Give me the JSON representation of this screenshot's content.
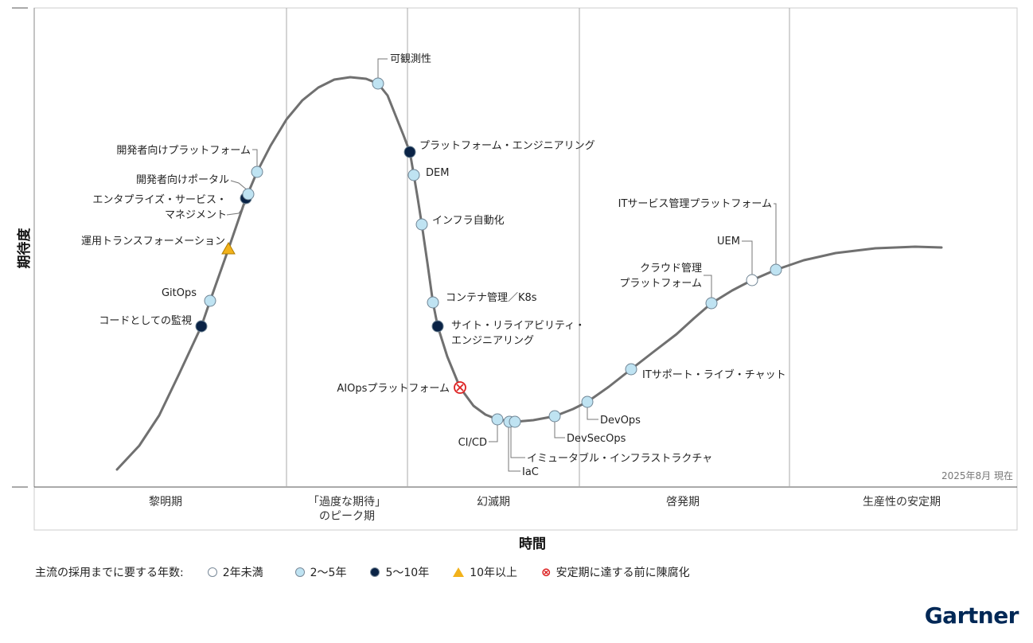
{
  "chart_data": {
    "type": "scatter",
    "subtype": "hype-cycle",
    "ylabel": "期待度",
    "xlabel": "時間",
    "as_of": "2025年8月 現在",
    "phases": [
      "黎明期",
      "「過度な期待」\nのピーク期",
      "幻滅期",
      "啓発期",
      "生産性の安定期"
    ],
    "phase_lines": [
      [
        "黎明期"
      ],
      [
        "「過度な期待」",
        "のピーク期"
      ],
      [
        "幻滅期"
      ],
      [
        "啓発期"
      ],
      [
        "生産性の安定期"
      ]
    ],
    "points": [
      {
        "name": "コードとしての監視",
        "lines": [
          "コードとしての監視"
        ],
        "phase": "黎明期",
        "years": "5〜10年"
      },
      {
        "name": "GitOps",
        "lines": [
          "GitOps"
        ],
        "phase": "黎明期",
        "years": "2〜5年"
      },
      {
        "name": "運用トランスフォーメーション",
        "lines": [
          "運用トランスフォーメーション"
        ],
        "phase": "黎明期",
        "years": "10年以上"
      },
      {
        "name": "エンタプライズ・サービス・マネジメント",
        "lines": [
          "エンタプライズ・サービス・",
          "マネジメント"
        ],
        "phase": "黎明期",
        "years": "5〜10年"
      },
      {
        "name": "開発者向けポータル",
        "lines": [
          "開発者向けポータル"
        ],
        "phase": "黎明期",
        "years": "2〜5年"
      },
      {
        "name": "開発者向けプラットフォーム",
        "lines": [
          "開発者向けプラットフォーム"
        ],
        "phase": "黎明期",
        "years": "2〜5年"
      },
      {
        "name": "可観測性",
        "lines": [
          "可観測性"
        ],
        "phase": "「過度な期待」のピーク期",
        "years": "2〜5年"
      },
      {
        "name": "プラットフォーム・エンジニアリング",
        "lines": [
          "プラットフォーム・エンジニアリング"
        ],
        "phase": "幻滅期",
        "years": "5〜10年"
      },
      {
        "name": "DEM",
        "lines": [
          "DEM"
        ],
        "phase": "幻滅期",
        "years": "2〜5年"
      },
      {
        "name": "インフラ自動化",
        "lines": [
          "インフラ自動化"
        ],
        "phase": "幻滅期",
        "years": "2〜5年"
      },
      {
        "name": "コンテナ管理／K8s",
        "lines": [
          "コンテナ管理／K8s"
        ],
        "phase": "幻滅期",
        "years": "2〜5年"
      },
      {
        "name": "サイト・リライアビリティ・エンジニアリング",
        "lines": [
          "サイト・リライアビリティ・",
          "エンジニアリング"
        ],
        "phase": "幻滅期",
        "years": "5〜10年"
      },
      {
        "name": "AIOpsプラットフォーム",
        "lines": [
          "AIOpsプラットフォーム"
        ],
        "phase": "幻滅期",
        "years": "安定期に達する前に陳腐化"
      },
      {
        "name": "CI/CD",
        "lines": [
          "CI/CD"
        ],
        "phase": "幻滅期",
        "years": "2〜5年"
      },
      {
        "name": "イミュータブル・インフラストラクチャ",
        "lines": [
          "イミュータブル・インフラストラクチャ"
        ],
        "phase": "幻滅期",
        "years": "2〜5年"
      },
      {
        "name": "IaC",
        "lines": [
          "IaC"
        ],
        "phase": "幻滅期",
        "years": "2〜5年"
      },
      {
        "name": "DevSecOps",
        "lines": [
          "DevSecOps"
        ],
        "phase": "幻滅期",
        "years": "2〜5年"
      },
      {
        "name": "DevOps",
        "lines": [
          "DevOps"
        ],
        "phase": "啓発期",
        "years": "2〜5年"
      },
      {
        "name": "ITサポート・ライブ・チャット",
        "lines": [
          "ITサポート・ライブ・チャット"
        ],
        "phase": "啓発期",
        "years": "2〜5年"
      },
      {
        "name": "クラウド管理プラットフォーム",
        "lines": [
          "クラウド管理",
          "プラットフォーム"
        ],
        "phase": "啓発期",
        "years": "2〜5年"
      },
      {
        "name": "UEM",
        "lines": [
          "UEM"
        ],
        "phase": "啓発期",
        "years": "2年未満"
      },
      {
        "name": "ITサービス管理プラットフォーム",
        "lines": [
          "ITサービス管理プラットフォーム"
        ],
        "phase": "啓発期",
        "years": "2〜5年"
      }
    ],
    "legend": {
      "title": "主流の採用までに要する年数:",
      "items": [
        {
          "label": "2年未満",
          "marker": "circle",
          "color": "#ffffff"
        },
        {
          "label": "2〜5年",
          "marker": "circle",
          "color": "#bfe3f2"
        },
        {
          "label": "5〜10年",
          "marker": "circle",
          "color": "#0a2346"
        },
        {
          "label": "10年以上",
          "marker": "triangle",
          "color": "#f2b21b"
        },
        {
          "label": "安定期に達する前に陳腐化",
          "marker": "x-circle",
          "color": "#dd2222"
        }
      ],
      "placement": "bottom"
    }
  },
  "brand": {
    "logo": "Gartner"
  }
}
